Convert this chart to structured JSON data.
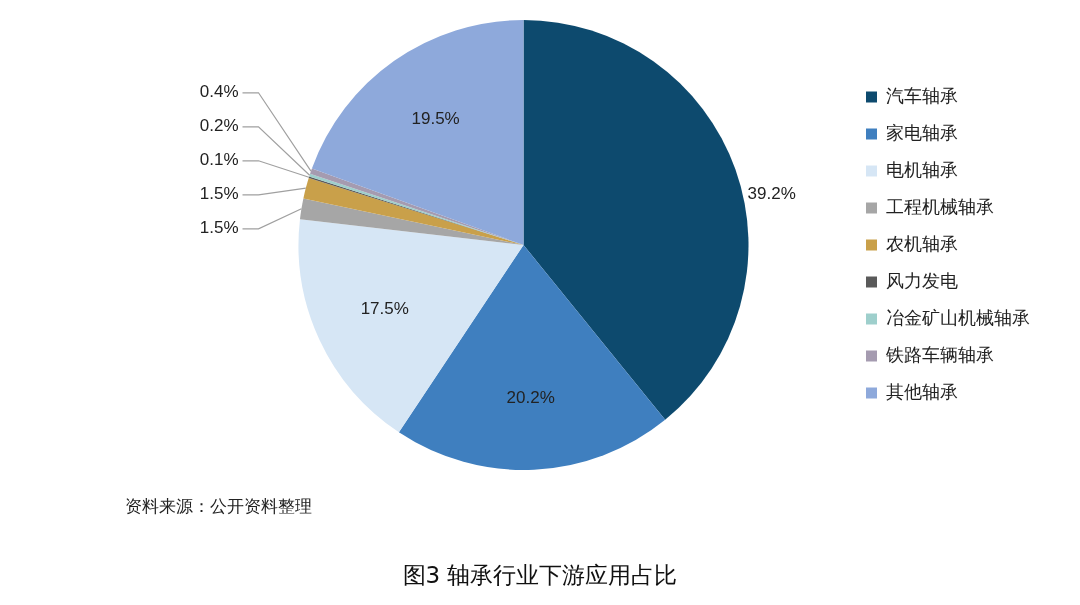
{
  "chart_data": {
    "type": "pie",
    "title": "图3 轴承行业下游应用占比",
    "annotations": [
      "资料来源：公开资料整理"
    ],
    "categories": [
      "汽车轴承",
      "家电轴承",
      "电机轴承",
      "工程机械轴承",
      "农机轴承",
      "风力发电",
      "冶金矿山机械轴承",
      "铁路车辆轴承",
      "其他轴承"
    ],
    "values": [
      39.2,
      20.2,
      17.5,
      1.5,
      1.5,
      0.1,
      0.2,
      0.4,
      19.5
    ],
    "colors": [
      "#0d4a6e",
      "#3f7fbf",
      "#d6e6f5",
      "#a6a6a6",
      "#c9a04a",
      "#5a5a5a",
      "#9ecfcc",
      "#a59bb0",
      "#8ea9db"
    ],
    "value_labels": [
      "39.2%",
      "20.2%",
      "17.5%",
      "1.5%",
      "1.5%",
      "0.1%",
      "0.2%",
      "0.4%",
      "19.5%"
    ],
    "legend": "right"
  }
}
